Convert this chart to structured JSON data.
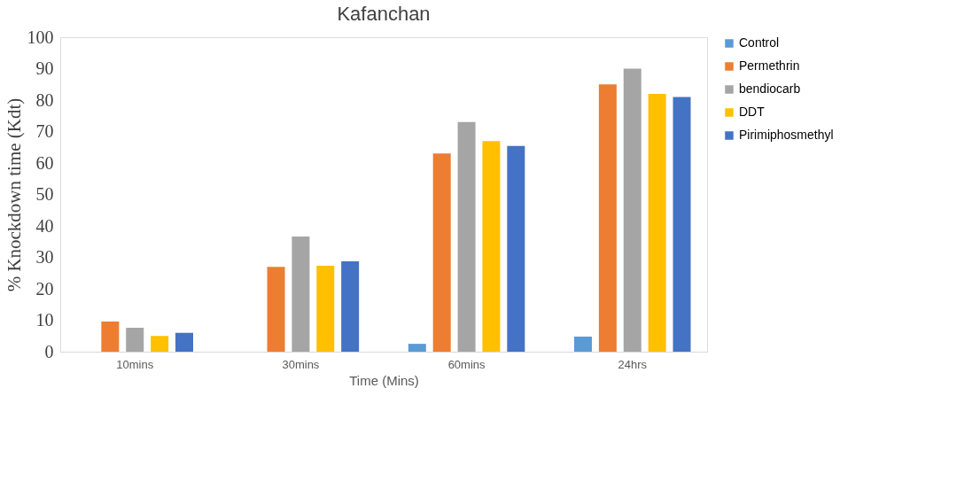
{
  "chart_data": {
    "type": "bar",
    "title": "Kafanchan",
    "xlabel": "Time (Mins)",
    "ylabel": "% Knockdown time (Kdt)",
    "categories": [
      "10mins",
      "30mins",
      "60mins",
      "24hrs"
    ],
    "series": [
      {
        "name": "Control",
        "color": "#5b9bd5",
        "values": [
          0,
          0,
          2.5,
          4.8
        ]
      },
      {
        "name": "Permethrin",
        "color": "#ed7d31",
        "values": [
          9.6,
          27,
          63,
          85
        ]
      },
      {
        "name": "bendiocarb",
        "color": "#a5a5a5",
        "values": [
          7.6,
          36.6,
          73,
          90
        ]
      },
      {
        "name": "DDT",
        "color": "#ffc000",
        "values": [
          5,
          27.3,
          67,
          82
        ]
      },
      {
        "name": "Pirimiphosmethyl",
        "color": "#4472c4",
        "values": [
          6,
          28.7,
          65.4,
          81
        ]
      }
    ],
    "ylim": [
      0,
      100
    ],
    "yticks": [
      0,
      10,
      20,
      30,
      40,
      50,
      60,
      70,
      80,
      90,
      100
    ],
    "grid": false,
    "legend": "right"
  }
}
